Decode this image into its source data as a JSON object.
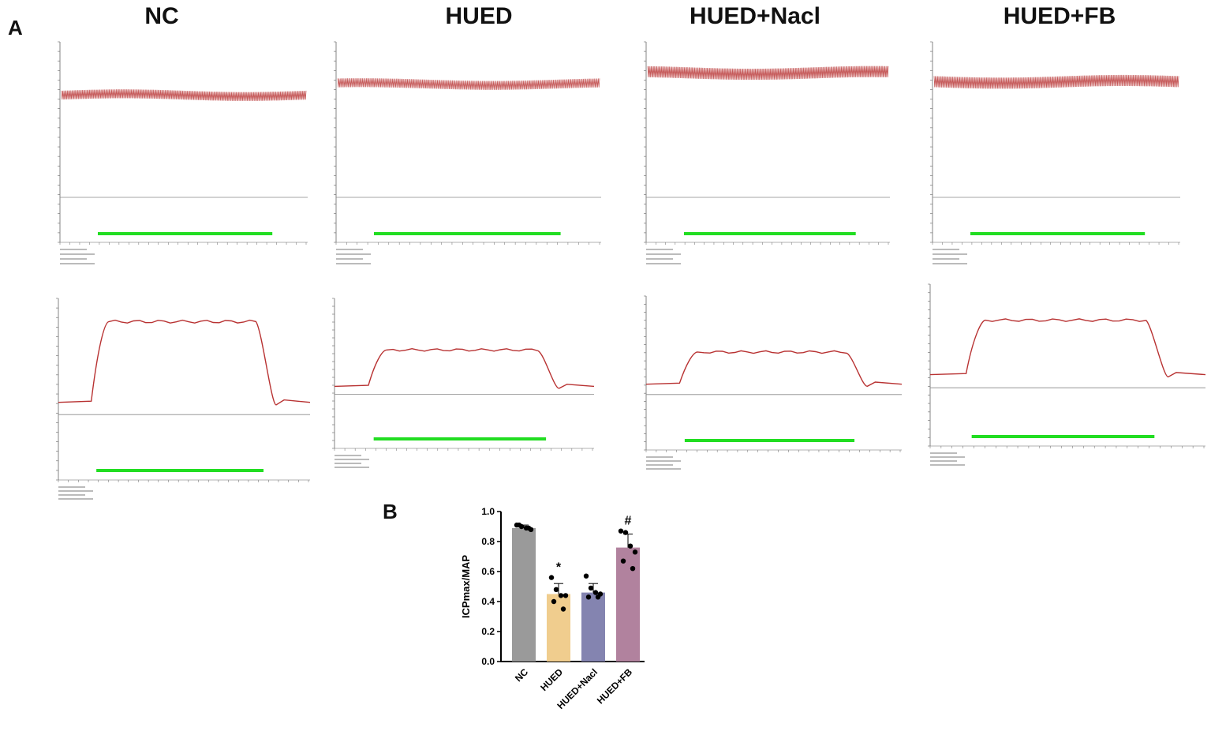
{
  "panel_a_label": "A",
  "panel_b_label": "B",
  "groups": [
    "NC",
    "HUED",
    "HUED+Nacl",
    "HUED+FB"
  ],
  "colors": {
    "trace_red": "#b83232",
    "trace_green": "#22dd22",
    "bar_nc": "#9a9a9a",
    "bar_hued": "#f0cd8e",
    "bar_nacl": "#8484b0",
    "bar_fb": "#b1829e"
  },
  "chart_data": [
    {
      "type": "line",
      "panel": "A-top",
      "description_of_traces": "mean arterial pressure recordings",
      "series": [
        {
          "name": "NC",
          "mean": 92,
          "amplitude": 4
        },
        {
          "name": "HUED",
          "mean": 102,
          "amplitude": 4
        },
        {
          "name": "HUED+Nacl",
          "mean": 112,
          "amplitude": 5
        },
        {
          "name": "HUED+FB",
          "mean": 104,
          "amplitude": 5
        }
      ]
    },
    {
      "type": "line",
      "panel": "A-bottom",
      "description_of_traces": "intracavernous pressure recordings",
      "series": [
        {
          "name": "NC",
          "baseline": 10,
          "plateau": 76
        },
        {
          "name": "HUED",
          "baseline": 8,
          "plateau": 44
        },
        {
          "name": "HUED+Nacl",
          "baseline": 10,
          "plateau": 41
        },
        {
          "name": "HUED+FB",
          "baseline": 12,
          "plateau": 62
        }
      ]
    },
    {
      "type": "bar",
      "panel": "B",
      "ylabel": "ICPmax/MAP",
      "ylim": [
        0,
        1.0
      ],
      "yticks": [
        "0.0",
        "0.2",
        "0.4",
        "0.6",
        "0.8",
        "1.0"
      ],
      "categories": [
        "NC",
        "HUED",
        "HUED+Nacl",
        "HUED+FB"
      ],
      "values": [
        0.89,
        0.45,
        0.46,
        0.76
      ],
      "errors": [
        0.02,
        0.07,
        0.06,
        0.09
      ],
      "points": [
        [
          0.91,
          0.9,
          0.89,
          0.88,
          0.91,
          0.89
        ],
        [
          0.56,
          0.48,
          0.44,
          0.44,
          0.4,
          0.35
        ],
        [
          0.57,
          0.49,
          0.46,
          0.45,
          0.43,
          0.43
        ],
        [
          0.87,
          0.86,
          0.77,
          0.73,
          0.67,
          0.62
        ]
      ],
      "annotations": [
        "",
        "*",
        "",
        "#"
      ]
    }
  ]
}
